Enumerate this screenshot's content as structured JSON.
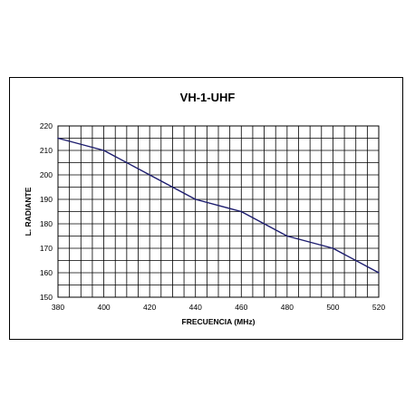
{
  "chart_data": {
    "type": "line",
    "title": "VH-1-UHF",
    "xlabel": "FRECUENCIA  (MHz)",
    "ylabel": "L. RADIANTE",
    "xlim": [
      380,
      520
    ],
    "ylim": [
      150,
      220
    ],
    "xticks": [
      380,
      400,
      420,
      440,
      460,
      480,
      500,
      520
    ],
    "yticks": [
      150,
      160,
      170,
      180,
      190,
      200,
      210,
      220
    ],
    "grid": true,
    "grid_x_step": 5,
    "grid_y_step": 5,
    "line_color": "#1c1c6e",
    "series": [
      {
        "x": [
          380,
          400,
          420,
          440,
          460,
          480,
          500,
          520
        ],
        "y": [
          215,
          210,
          200,
          190,
          185,
          175,
          170,
          160
        ]
      }
    ]
  }
}
